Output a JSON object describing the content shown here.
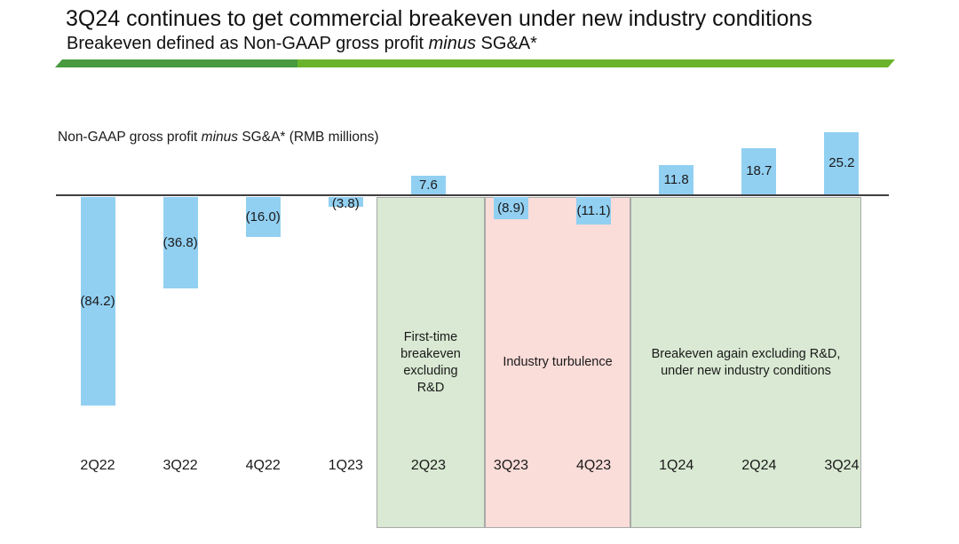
{
  "slide": {
    "title": "3Q24 continues to get commercial breakeven under new industry conditions",
    "subtitle": {
      "prefix": "Breakeven defined as Non-GAAP gross profit ",
      "italic": "minus",
      "suffix": " SG&A*"
    },
    "accent": {
      "dark_green": "#479a3e",
      "light_green": "#69b42b"
    }
  },
  "chart_data": {
    "type": "bar",
    "axis_title": {
      "prefix": "Non-GAAP gross profit ",
      "italic": "minus",
      "suffix": " SG&A* (RMB millions)"
    },
    "categories": [
      "2Q22",
      "3Q22",
      "4Q22",
      "1Q23",
      "2Q23",
      "3Q23",
      "4Q23",
      "1Q24",
      "2Q24",
      "3Q24"
    ],
    "values": [
      -84.2,
      -36.8,
      -16.0,
      -3.8,
      7.6,
      -8.9,
      -11.1,
      11.8,
      18.7,
      25.2
    ],
    "labels": [
      "(84.2)",
      "(36.8)",
      "(16.0)",
      "(3.8)",
      "7.6",
      "(8.9)",
      "(11.1)",
      "11.8",
      "18.7",
      "25.2"
    ],
    "ylim": [
      -90,
      30
    ],
    "grid": false,
    "legend": "none",
    "bar_color": "#92d0f2",
    "axis_color": "#3f3f3f",
    "annotations": [
      {
        "lines": [
          "First-time",
          "breakeven",
          "excluding",
          "R&D"
        ],
        "from": "2Q23",
        "to": "2Q23",
        "fill": "#d9e9d3"
      },
      {
        "lines": [
          "Industry turbulence"
        ],
        "from": "3Q23",
        "to": "4Q23",
        "fill": "#fadcd9"
      },
      {
        "lines": [
          "Breakeven again excluding R&D,",
          "under new industry conditions"
        ],
        "from": "1Q24",
        "to": "3Q24",
        "fill": "#d9e9d3"
      }
    ]
  }
}
